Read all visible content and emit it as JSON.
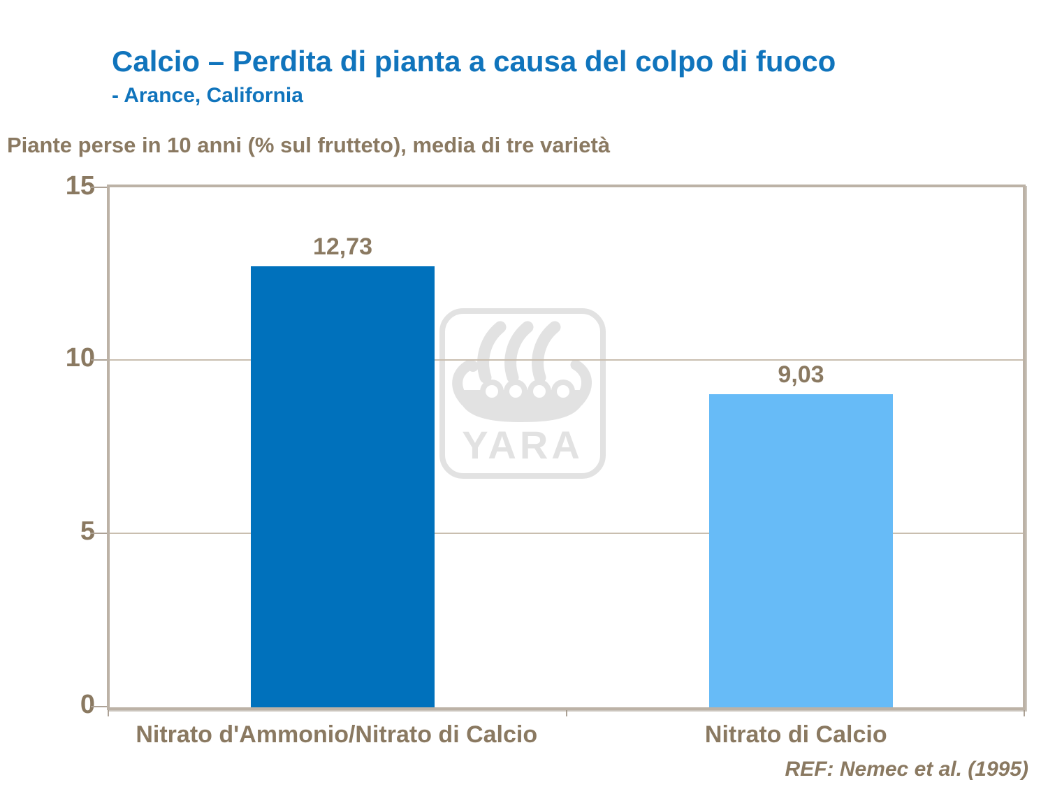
{
  "header": {
    "title": "Calcio – Perdita di pianta a causa del colpo di fuoco",
    "subtitle": "- Arance, California",
    "title_color": "#1074BC"
  },
  "chart_data": {
    "type": "bar",
    "title": "Calcio – Perdita di pianta a causa del colpo di fuoco - Arance, California",
    "ylabel": "Piante perse in 10 anni (% sul frutteto), media di tre varietà",
    "xlabel": "",
    "categories": [
      "Nitrato d'Ammonio/Nitrato di Calcio",
      "Nitrato di Calcio"
    ],
    "values": [
      12.73,
      9.03
    ],
    "value_labels": [
      "12,73",
      "9,03"
    ],
    "bar_colors": [
      "#0071BC",
      "#67BBF7"
    ],
    "ylim": [
      0,
      15
    ],
    "yticks": [
      0,
      5,
      10,
      15
    ],
    "ytick_labels": [
      "0",
      "5",
      "10",
      "15"
    ],
    "grid": true,
    "gridlines_at": [
      5,
      10
    ],
    "legend": false
  },
  "footer": {
    "reference": "REF: Nemec et al. (1995)"
  },
  "watermark": {
    "name": "yara-logo",
    "text": "YARA",
    "color": "#E2E2E2"
  },
  "colors": {
    "text_brown": "#8A7961",
    "axis_border": "#BCB2A6",
    "gridline": "#C9BEAF"
  }
}
